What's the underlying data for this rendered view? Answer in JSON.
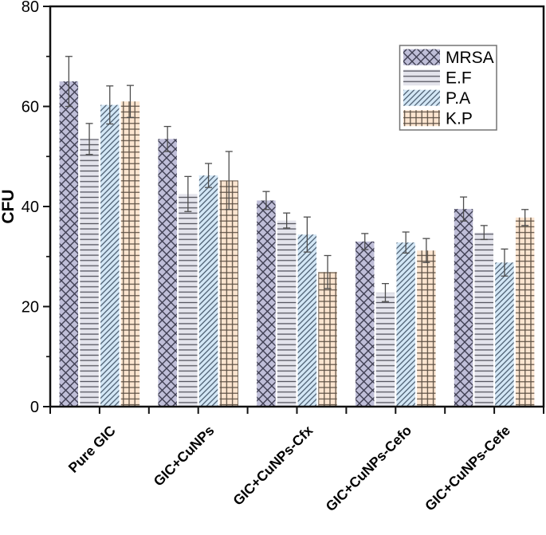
{
  "figure": {
    "kind": "grouped-bar-chart-with-error-bars",
    "background": "#ffffff"
  },
  "chart_data": {
    "type": "bar",
    "title": "",
    "xlabel": "",
    "ylabel": "CFU",
    "ylim": [
      0,
      80
    ],
    "yticks_major": [
      0,
      20,
      40,
      60,
      80
    ],
    "yticks_minor": [
      10,
      30,
      50,
      70
    ],
    "grid": false,
    "legend_position": "top-right",
    "categories": [
      "Pure GIC",
      "GIC+CuNPs",
      "GIC+CuNPs-Cfx",
      "GIC+CuNPs-Cefo",
      "GIC+CuNPs-Cefe"
    ],
    "series": [
      {
        "name": "MRSA",
        "fill": "#bfbed8",
        "hatch": "diagonal-cross",
        "hatch_color": "#3f3e52",
        "values": [
          65,
          53.5,
          41.2,
          33,
          39.5
        ],
        "errors": [
          5,
          2.5,
          1.8,
          1.6,
          2.4
        ]
      },
      {
        "name": "E.F",
        "fill": "#e4e4ec",
        "hatch": "horizontal",
        "hatch_color": "#55555f",
        "values": [
          53.5,
          42.5,
          37.2,
          22.8,
          34.8
        ],
        "errors": [
          3.1,
          3.5,
          1.5,
          1.8,
          1.4
        ]
      },
      {
        "name": "P.A",
        "fill": "#d3e7f6",
        "hatch": "diagonal",
        "hatch_color": "#46586b",
        "values": [
          60.3,
          46.2,
          34.4,
          32.8,
          28.8
        ],
        "errors": [
          3.8,
          2.4,
          3.5,
          2.1,
          2.7
        ]
      },
      {
        "name": "K.P",
        "fill": "#fce5d0",
        "hatch": "grid",
        "hatch_color": "#5c5044",
        "values": [
          61,
          45.2,
          26.9,
          31.2,
          37.8
        ],
        "errors": [
          3.2,
          5.8,
          3.3,
          2.4,
          1.6
        ]
      }
    ],
    "error_bar_color": "#4d4d4d",
    "axis_color": "#111111",
    "legend_border_color": "#737373"
  }
}
